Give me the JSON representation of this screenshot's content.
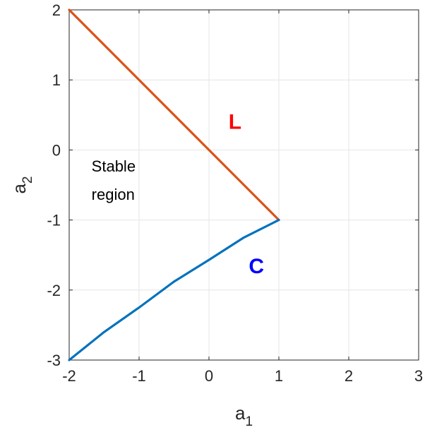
{
  "chart_data": {
    "type": "line",
    "xlabel": {
      "main": "a",
      "sub": "1"
    },
    "ylabel": {
      "main": "a",
      "sub": "2"
    },
    "xlim": [
      -2,
      3
    ],
    "ylim": [
      -3,
      2
    ],
    "xticks": [
      "-2",
      "-1",
      "0",
      "1",
      "2",
      "3"
    ],
    "yticks": [
      "2",
      "1",
      "0",
      "-1",
      "-2",
      "-3"
    ],
    "xtick_values": [
      -2,
      -1,
      0,
      1,
      2,
      3
    ],
    "ytick_values": [
      2,
      1,
      0,
      -1,
      -2,
      -3
    ],
    "grid": true,
    "series": [
      {
        "name": "L",
        "color": "#D95319",
        "x": [
          -2,
          1
        ],
        "y": [
          2,
          -1
        ]
      },
      {
        "name": "C",
        "color": "#0072BD",
        "x": [
          -2,
          -1.5,
          -1,
          -0.5,
          0,
          0.5,
          1
        ],
        "y": [
          -3,
          -2.6,
          -2.25,
          -1.88,
          -1.57,
          -1.25,
          -1
        ]
      }
    ],
    "annotations": [
      {
        "id": "stable",
        "lines": [
          "Stable",
          "region"
        ],
        "x": -1.68,
        "y": -0.45,
        "color": "#000000"
      },
      {
        "id": "L",
        "text": "L",
        "x": 0.28,
        "y": 0.4,
        "color": "#FF0000"
      },
      {
        "id": "C",
        "text": "C",
        "x": 0.57,
        "y": -1.66,
        "color": "#0000FF"
      }
    ]
  }
}
